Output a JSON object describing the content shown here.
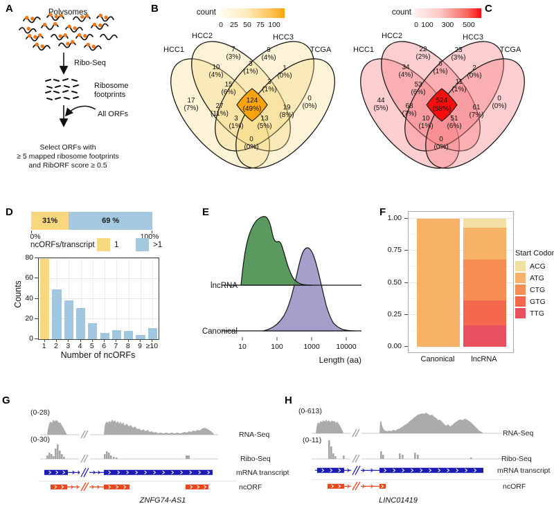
{
  "panel_letters": {
    "a": "A",
    "b": "B",
    "c": "C",
    "d": "D",
    "e": "E",
    "f": "F",
    "g": "G",
    "h": "H"
  },
  "accent_colors": {
    "polysome_dot": "#F07818",
    "mrna_blue": "#1D1DB5",
    "ncorf_red": "#E8481C",
    "venn_b_max": "#FCA40B",
    "venn_c_max": "#F90D0D"
  },
  "panel_a": {
    "polysomes": "Polysomes",
    "ribo_seq": "Ribo-Seq",
    "footprints_1": "Ribosome",
    "footprints_2": "footprints",
    "all_orfs": "All ORFs",
    "select_1": "Select ORFs with",
    "select_2": "≥ 5 mapped ribosome footprints",
    "select_3": "and RibORF score ≥ 0.5"
  },
  "panel_d": {
    "axis_min": "0%",
    "axis_max": "100%",
    "legend_title": "ncORFs/transcript",
    "legend_items": [
      "1",
      ">1"
    ],
    "legend_colors": [
      "#F8D77E",
      "#A3C8E0"
    ]
  },
  "tracks_common": [
    "RNA-Seq",
    "Ribo-Seq",
    "mRNA transcript",
    "ncORF"
  ],
  "panel_g": {
    "range_rna": "(0-28)",
    "range_ribo": "(0-30)",
    "gene": "ZNFG74-AS1"
  },
  "panel_h": {
    "range_rna": "(0-613)",
    "range_ribo": "(0-11)",
    "gene": "LINC01419"
  },
  "chart_data": [
    {
      "id": "d_topbar",
      "type": "bar",
      "stacked": true,
      "segments": [
        {
          "label": "31%",
          "value": 31,
          "color": "#F8D77E"
        },
        {
          "label": "69 %",
          "value": 69,
          "color": "#A3C8E0"
        }
      ],
      "xlim": [
        "0%",
        "100%"
      ]
    },
    {
      "id": "d_histogram",
      "type": "bar",
      "categories": [
        "1",
        "2",
        "3",
        "4",
        "5",
        "6",
        "7",
        "8",
        "9",
        "≥10"
      ],
      "values": [
        79,
        49,
        38,
        31,
        16,
        6,
        9,
        8,
        4,
        11
      ],
      "title": "",
      "xlabel": "Number of ncORFs",
      "ylabel": "Counts",
      "ylim": [
        0,
        80
      ],
      "yticks": [
        0,
        20,
        40,
        60,
        80
      ],
      "bar_colors": {
        "first": "#F8D77E",
        "rest": "#A1C6DF"
      }
    },
    {
      "id": "e_density",
      "type": "area",
      "xlabel": "Length (aa)",
      "x_scale": "log10",
      "xticks": [
        "10",
        "100",
        "1000",
        "10000"
      ],
      "groups": [
        {
          "name": "lncRNA",
          "color": "#4C9150",
          "peak_x_aa": 55,
          "range_aa": [
            9,
            400
          ]
        },
        {
          "name": "Canonical",
          "color": "#A49FCB",
          "peak_x_aa": 650,
          "range_aa": [
            80,
            8000
          ]
        }
      ],
      "legend_position": "left-row-labels",
      "grid": false
    },
    {
      "id": "f_stacked",
      "type": "bar",
      "stacked": true,
      "categories": [
        "Canonical",
        "lncRNA"
      ],
      "yticks": [
        "0.00",
        "0.25",
        "0.50",
        "0.75",
        "1.00"
      ],
      "ylim": [
        0,
        1
      ],
      "legend_title": "Start Codon",
      "series": [
        {
          "name": "ACG",
          "color": "#F1DFA3",
          "values": [
            0,
            0.07
          ]
        },
        {
          "name": "ATG",
          "color": "#F6B368",
          "values": [
            1.0,
            0.25
          ]
        },
        {
          "name": "CTG",
          "color": "#F68D52",
          "values": [
            0,
            0.32
          ]
        },
        {
          "name": "GTG",
          "color": "#F4694B",
          "values": [
            0,
            0.19
          ]
        },
        {
          "name": "TTG",
          "color": "#E84F5F",
          "values": [
            0,
            0.17
          ]
        }
      ]
    },
    {
      "id": "b_venn",
      "type": "venn",
      "legend_title": "count",
      "legend_ticks": [
        "0",
        "25",
        "50",
        "75",
        "100"
      ],
      "scale_max": 124,
      "sets": [
        "HCC1",
        "HCC2",
        "HCC3",
        "TCGA"
      ],
      "regions": {
        "a_only": {
          "count": "17",
          "pct": "(7%)"
        },
        "b_only": {
          "count": "7",
          "pct": "(3%)"
        },
        "c_only": {
          "count": "9",
          "pct": "(4%)"
        },
        "d_only": {
          "count": "0",
          "pct": "(0%)"
        },
        "ab": {
          "count": "10",
          "pct": "(4%)"
        },
        "bc": {
          "count": "3",
          "pct": "(1%)"
        },
        "cd": {
          "count": "1",
          "pct": "(0%)"
        },
        "ac": {
          "count": "3",
          "pct": "(1%)"
        },
        "bd": {
          "count": "13",
          "pct": "(5%)"
        },
        "ad": {
          "count": "0",
          "pct": "(0%)"
        },
        "abc": {
          "count": "15",
          "pct": "(6%)"
        },
        "bcd": {
          "count": "3",
          "pct": "(1%)"
        },
        "abd": {
          "count": "27",
          "pct": "(11%)"
        },
        "acd": {
          "count": "19",
          "pct": "(8%)"
        },
        "abcd": {
          "count": "124",
          "pct": "(49%)"
        }
      }
    },
    {
      "id": "c_venn",
      "type": "venn",
      "legend_title": "count",
      "legend_ticks": [
        "0",
        "100",
        "300",
        "500"
      ],
      "scale_max": 524,
      "sets": [
        "HCC1",
        "HCC2",
        "HCC3",
        "TCGA"
      ],
      "regions": {
        "a_only": {
          "count": "44",
          "pct": "(5%)"
        },
        "b_only": {
          "count": "22",
          "pct": "(2%)"
        },
        "c_only": {
          "count": "23",
          "pct": "(3%)"
        },
        "d_only": {
          "count": "0",
          "pct": "(0%)"
        },
        "ab": {
          "count": "34",
          "pct": "(4%)"
        },
        "bc": {
          "count": "6",
          "pct": "(1%)"
        },
        "cd": {
          "count": "2",
          "pct": "(0%)"
        },
        "ac": {
          "count": "10",
          "pct": "(1%)"
        },
        "bd": {
          "count": "51",
          "pct": "(6%)"
        },
        "ad": {
          "count": "0",
          "pct": "(0%)"
        },
        "abc": {
          "count": "53",
          "pct": "(6%)"
        },
        "bcd": {
          "count": "11",
          "pct": "(1%)"
        },
        "abd": {
          "count": "68",
          "pct": "(7%)"
        },
        "acd": {
          "count": "61",
          "pct": "(7%)"
        },
        "abcd": {
          "count": "524",
          "pct": "(58%)"
        }
      }
    }
  ]
}
